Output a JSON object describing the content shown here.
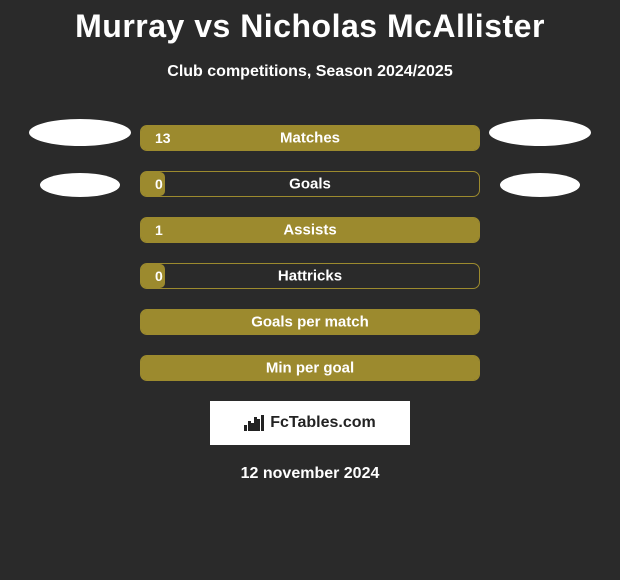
{
  "title": "Murray vs Nicholas McAllister",
  "subtitle": "Club competitions, Season 2024/2025",
  "date": "12 november 2024",
  "brand_text": "FcTables.com",
  "background_color": "#2a2a2a",
  "bar_border_color": "#9c8a2e",
  "bar_fill_color": "#9c8a2e",
  "text_color": "#ffffff",
  "avatar_color": "#ffffff",
  "bars": [
    {
      "label": "Matches",
      "value_text": "13",
      "fill_fraction": 1.0,
      "show_value": true
    },
    {
      "label": "Goals",
      "value_text": "0",
      "fill_fraction": 0.07,
      "show_value": true
    },
    {
      "label": "Assists",
      "value_text": "1",
      "fill_fraction": 1.0,
      "show_value": true
    },
    {
      "label": "Hattricks",
      "value_text": "0",
      "fill_fraction": 0.07,
      "show_value": true
    },
    {
      "label": "Goals per match",
      "value_text": "",
      "fill_fraction": 1.0,
      "show_value": false
    },
    {
      "label": "Min per goal",
      "value_text": "",
      "fill_fraction": 1.0,
      "show_value": false
    }
  ],
  "left_avatars_count": 2,
  "right_avatars_count": 2,
  "bar_icon_heights": [
    6,
    10,
    8,
    14,
    12,
    16
  ]
}
